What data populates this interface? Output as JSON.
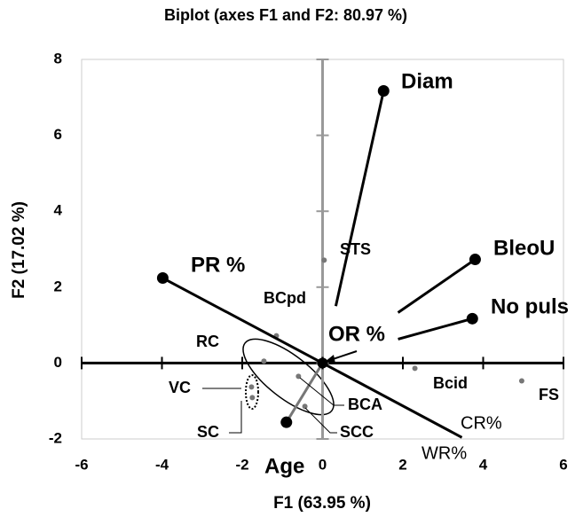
{
  "chart_data": {
    "type": "biplot",
    "title": "Biplot (axes F1 and F2: 80.97 %)",
    "x_label": "F1 (63.95 %)",
    "y_label": "F2 (17.02 %)",
    "xlim": [
      -6,
      6
    ],
    "ylim": [
      -2,
      8
    ],
    "xticks": [
      -6,
      -4,
      -2,
      0,
      2,
      4,
      6
    ],
    "yticks": [
      -2,
      0,
      2,
      4,
      6,
      8
    ],
    "vectors": [
      {
        "name": "Diam",
        "x0": 0.33,
        "y0": 1.5,
        "x": 1.52,
        "y": 7.17,
        "color": "#000000"
      },
      {
        "name": "BleoU",
        "x0": 1.88,
        "y0": 1.33,
        "x": 3.8,
        "y": 2.73,
        "color": "#000000"
      },
      {
        "name": "No puls",
        "x0": 1.88,
        "y0": 0.63,
        "x": 3.73,
        "y": 1.17,
        "color": "#000000"
      },
      {
        "name": "PR %",
        "x0": 0,
        "y0": 0,
        "x": -3.98,
        "y": 2.24,
        "color": "#000000"
      },
      {
        "name": "Age",
        "x0": 0,
        "y0": 0,
        "x": -0.9,
        "y": -1.56,
        "color": "#777777"
      },
      {
        "name": "WR%",
        "x0": 0,
        "y0": 0,
        "x": 3.47,
        "y": -1.96,
        "color": "#000000"
      }
    ],
    "annotations": [
      "CR%",
      "OR %"
    ],
    "observations": [
      {
        "name": "STS",
        "x": 0.04,
        "y": 2.71
      },
      {
        "name": "BCpd",
        "x": -1.15,
        "y": 0.72
      },
      {
        "name": "RC",
        "x": -1.46,
        "y": 0.05
      },
      {
        "name": "VC",
        "x": -1.77,
        "y": -0.63
      },
      {
        "name": "SC",
        "x": -1.75,
        "y": -0.91
      },
      {
        "name": "BCA",
        "x": -0.6,
        "y": -0.35
      },
      {
        "name": "SCC",
        "x": -0.44,
        "y": -1.14
      },
      {
        "name": "Bcid",
        "x": 2.3,
        "y": -0.14
      },
      {
        "name": "FS",
        "x": 4.96,
        "y": -0.47
      }
    ]
  }
}
